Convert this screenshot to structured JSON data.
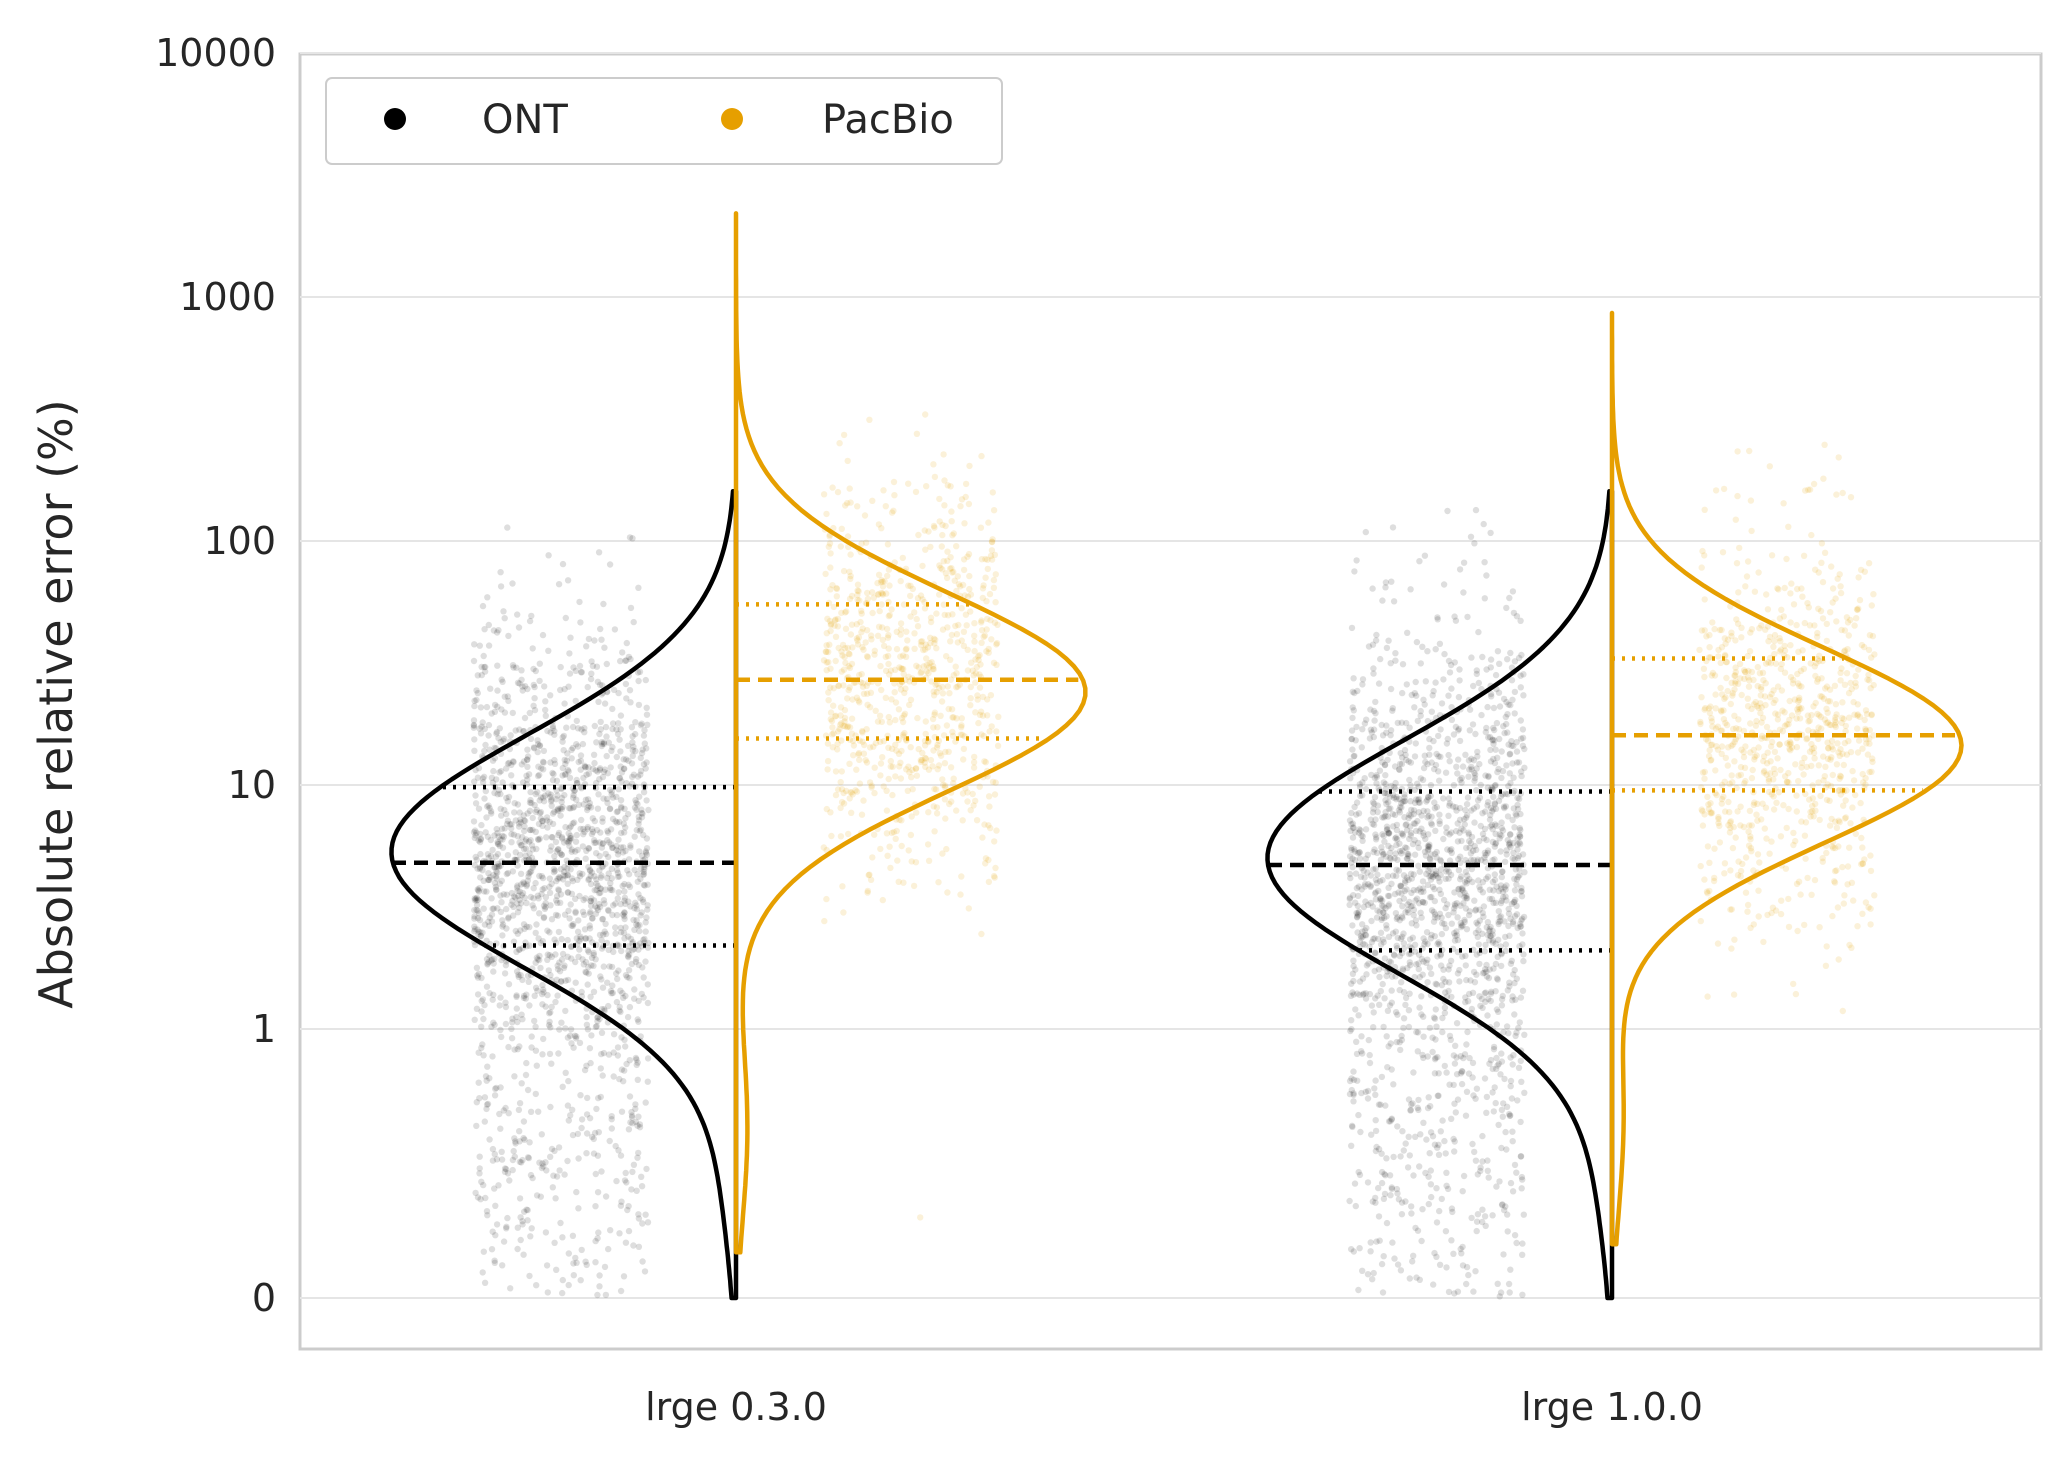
{
  "chart_data": {
    "type": "violin",
    "ylabel": "Absolute relative error (%)",
    "xlabel": "",
    "yscale": "symlog",
    "ylim": [
      -0.2,
      10000
    ],
    "yticks": [
      {
        "value": 0,
        "label": "0"
      },
      {
        "value": 1,
        "label": "1"
      },
      {
        "value": 10,
        "label": "10"
      },
      {
        "value": 100,
        "label": "100"
      },
      {
        "value": 1000,
        "label": "1000"
      },
      {
        "value": 10000,
        "label": "10000"
      }
    ],
    "categories": [
      "lrge 0.3.0",
      "lrge 1.0.0"
    ],
    "grid": "horizontal",
    "legend": {
      "position": "top-left",
      "ncol": 2
    },
    "series": [
      {
        "name": "ONT",
        "color": "#000000",
        "side": "left",
        "groups": [
          {
            "category": "lrge 0.3.0",
            "q1": 2.2,
            "median": 4.8,
            "q3": 9.8,
            "min": 0,
            "max": 160,
            "mode": 5.3
          },
          {
            "category": "lrge 1.0.0",
            "q1": 2.1,
            "median": 4.7,
            "q3": 9.4,
            "min": 0,
            "max": 160,
            "mode": 5.0
          }
        ]
      },
      {
        "name": "PacBio",
        "color": "#E69F00",
        "side": "right",
        "groups": [
          {
            "category": "lrge 0.3.0",
            "q1": 15.5,
            "median": 27,
            "q3": 55,
            "min": 0.17,
            "max": 2200,
            "mode": 24
          },
          {
            "category": "lrge 1.0.0",
            "q1": 9.5,
            "median": 16,
            "q3": 33,
            "min": 0.2,
            "max": 860,
            "mode": 14.5
          }
        ]
      }
    ]
  }
}
